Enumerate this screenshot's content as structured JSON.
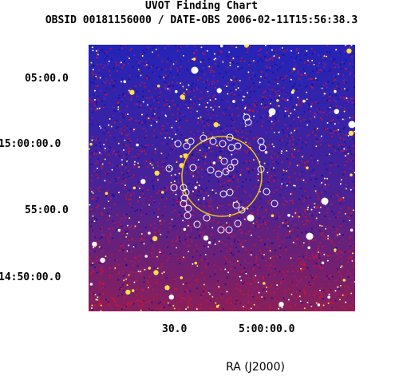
{
  "header": {
    "title": "UVOT Finding Chart",
    "subtitle": "OBSID 00181156000 / DATE-OBS 2006-02-11T15:56:38.3"
  },
  "axes": {
    "dec_ticks": [
      "05:00.0",
      "15:00:00.0",
      "55:00.0",
      "14:50:00.0"
    ],
    "ra_ticks": [
      "30.0",
      "5:00:00.0"
    ],
    "ra_title": "RA (J2000)"
  },
  "colors": {
    "sky_background": "#1e1ea8",
    "error_circle": "#e8c419",
    "source_marker": "#ffffff"
  }
}
